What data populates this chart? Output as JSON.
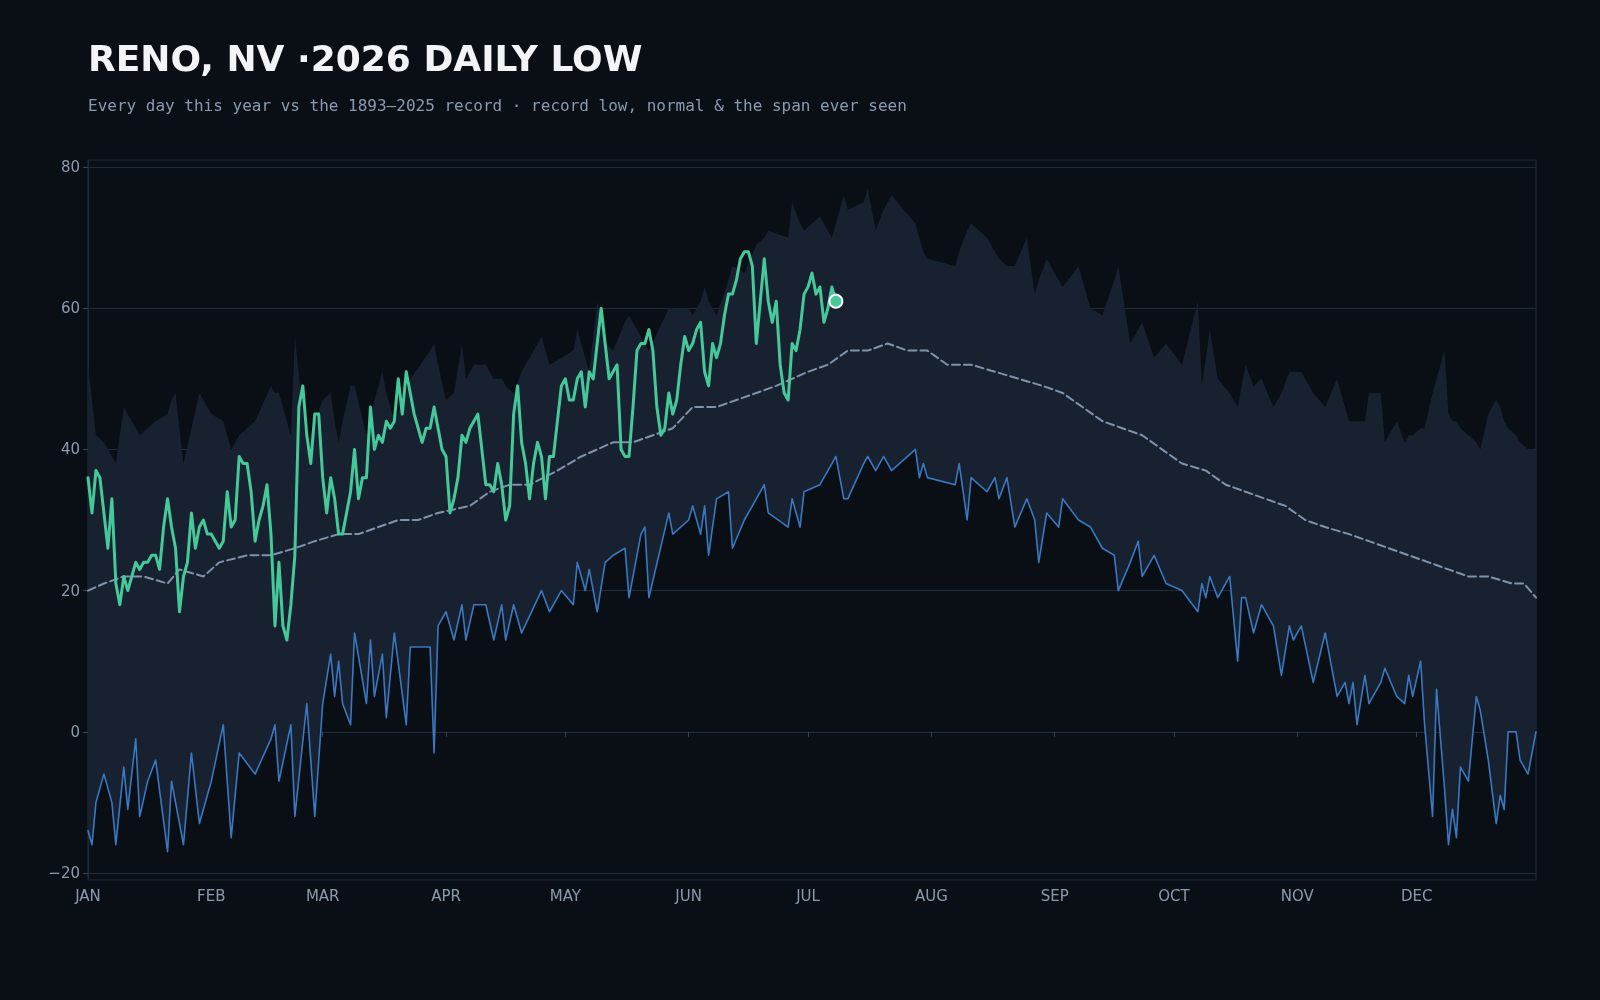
{
  "chart_data": {
    "type": "line",
    "title": "RENO, NV ·2026 DAILY LOW",
    "subtitle": "Every day this year vs the 1893–2025 record · record low, normal & the span ever seen",
    "xlim": [
      "2026-01-01",
      "2026-12-31"
    ],
    "xticks": [
      {
        "value": "2026-01-01",
        "label": "JAN"
      },
      {
        "value": "2026-02-01",
        "label": "FEB"
      },
      {
        "value": "2026-03-01",
        "label": "MAR"
      },
      {
        "value": "2026-04-01",
        "label": "APR"
      },
      {
        "value": "2026-05-01",
        "label": "MAY"
      },
      {
        "value": "2026-06-01",
        "label": "JUN"
      },
      {
        "value": "2026-07-01",
        "label": "JUL"
      },
      {
        "value": "2026-08-01",
        "label": "AUG"
      },
      {
        "value": "2026-09-01",
        "label": "SEP"
      },
      {
        "value": "2026-10-01",
        "label": "OCT"
      },
      {
        "value": "2026-11-01",
        "label": "NOV"
      },
      {
        "value": "2026-12-01",
        "label": "DEC"
      }
    ],
    "ylim": [
      -21,
      81
    ],
    "yticks": [
      {
        "value": -20,
        "label": "−20"
      },
      0,
      20,
      40,
      60,
      80
    ],
    "grid": "y",
    "series": [
      {
        "color": "#3a78c0",
        "x": [
          "2026-01-01",
          "2026-01-02",
          "2026-01-03",
          "2026-01-05",
          "2026-01-07",
          "2026-01-08",
          "2026-01-10",
          "2026-01-11",
          "2026-01-13",
          "2026-01-14",
          "2026-01-16",
          "2026-01-18",
          "2026-01-21",
          "2026-01-22",
          "2026-01-23",
          "2026-01-25",
          "2026-01-27",
          "2026-01-29",
          "2026-02-01",
          "2026-02-04",
          "2026-02-06",
          "2026-02-08",
          "2026-02-12",
          "2026-02-16",
          "2026-02-17",
          "2026-02-18",
          "2026-02-21",
          "2026-02-22",
          "2026-02-25",
          "2026-02-27",
          "2026-03-01",
          "2026-03-03",
          "2026-03-04",
          "2026-03-05",
          "2026-03-06",
          "2026-03-08",
          "2026-03-09",
          "2026-03-12",
          "2026-03-13",
          "2026-03-14",
          "2026-03-16",
          "2026-03-17",
          "2026-03-19",
          "2026-03-22",
          "2026-03-23",
          "2026-03-28",
          "2026-03-29",
          "2026-03-30",
          "2026-04-01",
          "2026-04-03",
          "2026-04-05",
          "2026-04-06",
          "2026-04-08",
          "2026-04-11",
          "2026-04-13",
          "2026-04-15",
          "2026-04-16",
          "2026-04-18",
          "2026-04-20",
          "2026-04-25",
          "2026-04-27",
          "2026-04-30",
          "2026-05-03",
          "2026-05-04",
          "2026-05-06",
          "2026-05-07",
          "2026-05-09",
          "2026-05-11",
          "2026-05-13",
          "2026-05-16",
          "2026-05-17",
          "2026-05-20",
          "2026-05-21",
          "2026-05-22",
          "2026-05-27",
          "2026-05-28",
          "2026-06-01",
          "2026-06-02",
          "2026-06-04",
          "2026-06-05",
          "2026-06-06",
          "2026-06-08",
          "2026-06-11",
          "2026-06-12",
          "2026-06-15",
          "2026-06-18",
          "2026-06-20",
          "2026-06-21",
          "2026-06-26",
          "2026-06-27",
          "2026-06-29",
          "2026-06-30",
          "2026-07-04",
          "2026-07-07",
          "2026-07-08",
          "2026-07-10",
          "2026-07-11",
          "2026-07-15",
          "2026-07-16",
          "2026-07-18",
          "2026-07-20",
          "2026-07-22",
          "2026-07-28",
          "2026-07-29",
          "2026-07-30",
          "2026-07-31",
          "2026-08-07",
          "2026-08-08",
          "2026-08-10",
          "2026-08-11",
          "2026-08-15",
          "2026-08-17",
          "2026-08-18",
          "2026-08-20",
          "2026-08-22",
          "2026-08-25",
          "2026-08-27",
          "2026-08-28",
          "2026-08-30",
          "2026-09-02",
          "2026-09-03",
          "2026-09-07",
          "2026-09-10",
          "2026-09-13",
          "2026-09-16",
          "2026-09-17",
          "2026-09-20",
          "2026-09-22",
          "2026-09-23",
          "2026-09-26",
          "2026-09-29",
          "2026-10-03",
          "2026-10-07",
          "2026-10-08",
          "2026-10-09",
          "2026-10-10",
          "2026-10-12",
          "2026-10-15",
          "2026-10-17",
          "2026-10-18",
          "2026-10-19",
          "2026-10-21",
          "2026-10-23",
          "2026-10-26",
          "2026-10-28",
          "2026-10-30",
          "2026-10-31",
          "2026-11-02",
          "2026-11-05",
          "2026-11-08",
          "2026-11-11",
          "2026-11-13",
          "2026-11-14",
          "2026-11-15",
          "2026-11-16",
          "2026-11-18",
          "2026-11-19",
          "2026-11-22",
          "2026-11-23",
          "2026-11-26",
          "2026-11-28",
          "2026-11-29",
          "2026-11-30",
          "2026-12-02",
          "2026-12-03",
          "2026-12-05",
          "2026-12-06",
          "2026-12-08",
          "2026-12-09",
          "2026-12-10",
          "2026-12-11",
          "2026-12-12",
          "2026-12-14",
          "2026-12-16",
          "2026-12-17",
          "2026-12-19",
          "2026-12-21",
          "2026-12-22",
          "2026-12-23",
          "2026-12-24",
          "2026-12-26",
          "2026-12-27",
          "2026-12-29",
          "2026-12-31"
        ],
        "values": [
          -14,
          -16,
          -10,
          -6,
          -10,
          -16,
          -5,
          -11,
          -1,
          -12,
          -7,
          -4,
          -17,
          -7,
          -10,
          -16,
          -3,
          -13,
          -7,
          1,
          -15,
          -3,
          -6,
          -1,
          1,
          -7,
          1,
          -12,
          4,
          -12,
          4,
          11,
          5,
          10,
          4,
          1,
          14,
          4,
          13,
          5,
          11,
          2,
          14,
          1,
          12,
          12,
          -3,
          15,
          17,
          13,
          18,
          13,
          18,
          18,
          13,
          18,
          13,
          18,
          14,
          20,
          17,
          20,
          18,
          24,
          20,
          23,
          17,
          24,
          25,
          26,
          19,
          28,
          29,
          19,
          31,
          28,
          30,
          32,
          28,
          32,
          25,
          33,
          34,
          26,
          30,
          33,
          35,
          31,
          29,
          33,
          29,
          34,
          35,
          38,
          39,
          33,
          33,
          38,
          39,
          37,
          39,
          37,
          40,
          36,
          38,
          36,
          35,
          38,
          30,
          36,
          34,
          36,
          33,
          36,
          29,
          33,
          30,
          24,
          31,
          29,
          33,
          30,
          29,
          26,
          25,
          20,
          24,
          27,
          22,
          25,
          21,
          20,
          17,
          21,
          19,
          22,
          19,
          22,
          10,
          19,
          19,
          14,
          18,
          15,
          8,
          15,
          13,
          15,
          7,
          14,
          5,
          7,
          4,
          7,
          1,
          8,
          4,
          7,
          9,
          5,
          4,
          8,
          5,
          10,
          1,
          -12,
          6,
          -8,
          -16,
          -11,
          -15,
          -5,
          -7,
          5,
          3,
          -4,
          -13,
          -9,
          -11,
          0,
          0,
          -4,
          -6,
          0
        ],
        "lower": [
          -14,
          -16,
          -10,
          -6,
          -10,
          -16,
          -5,
          -11,
          -1,
          -12,
          -7,
          -4,
          -17,
          -7,
          -10,
          -16,
          -3,
          -13,
          -7,
          1,
          -15,
          -3,
          -6,
          -1,
          1,
          -7,
          1,
          -12,
          4,
          -12,
          4,
          11,
          5,
          10,
          4,
          1,
          14,
          4,
          13,
          5,
          11,
          2,
          14,
          1,
          12,
          12,
          -3,
          15,
          17,
          13,
          18,
          13,
          18,
          18,
          13,
          18,
          13,
          18,
          14,
          20,
          17,
          20,
          18,
          24,
          20,
          23,
          17,
          24,
          25,
          26,
          19,
          28,
          29,
          19,
          31,
          28,
          30,
          32,
          28,
          32,
          25,
          33,
          34,
          26,
          30,
          33,
          35,
          31,
          29,
          33,
          29,
          34,
          35,
          38,
          39,
          33,
          33,
          38,
          39,
          37,
          39,
          37,
          40,
          36,
          38,
          36,
          35,
          38,
          30,
          36,
          34,
          36,
          33,
          36,
          29,
          33,
          30,
          24,
          31,
          29,
          33,
          30,
          29,
          26,
          25,
          20,
          24,
          27,
          22,
          25,
          21,
          20,
          17,
          21,
          19,
          22,
          19,
          22,
          10,
          19,
          19,
          14,
          18,
          15,
          8,
          15,
          13,
          15,
          7,
          14,
          5,
          7,
          4,
          7,
          1,
          8,
          4,
          7,
          9,
          5,
          4,
          8,
          5,
          10,
          1,
          -12,
          6,
          -8,
          -16,
          -11,
          -15,
          -5,
          -7,
          5,
          3,
          -4,
          -13,
          -9,
          -11,
          0,
          0,
          -4,
          -6,
          0
        ],
        "upper": [
          52,
          47,
          42,
          41,
          39,
          38,
          46,
          45,
          43,
          42,
          43,
          44,
          45,
          47,
          48,
          38,
          43,
          48,
          45,
          44,
          40,
          42,
          44,
          49,
          48,
          48,
          42,
          56,
          40,
          44,
          47,
          48,
          44,
          41,
          44,
          49,
          49,
          42,
          45,
          47,
          51,
          48,
          44,
          48,
          50,
          54,
          55,
          52,
          47,
          48,
          55,
          50,
          52,
          52,
          50,
          50,
          49,
          48,
          51,
          56,
          52,
          53,
          54,
          57,
          53,
          51,
          61,
          55,
          54,
          58,
          59,
          56,
          55,
          54,
          60,
          60,
          60,
          59,
          61,
          63,
          61,
          59,
          64,
          66,
          65,
          69,
          70,
          71,
          70,
          75,
          72,
          71,
          73,
          70,
          72,
          76,
          74,
          75,
          77,
          71,
          74,
          76,
          72,
          70,
          68,
          67,
          66,
          68,
          71,
          72,
          70,
          68,
          67,
          66,
          66,
          70,
          62,
          64,
          67,
          64,
          63,
          66,
          60,
          59,
          64,
          66,
          55,
          57,
          58,
          53,
          55,
          52,
          61,
          49,
          53,
          57,
          50,
          48,
          46,
          49,
          52,
          49,
          50,
          46,
          48,
          51,
          51,
          51,
          48,
          46,
          50,
          46,
          44,
          44,
          44,
          44,
          48,
          48,
          41,
          44,
          41,
          42,
          42,
          43,
          43,
          48,
          50,
          54,
          45,
          44,
          44,
          43,
          42,
          41,
          40,
          45,
          47,
          46,
          44,
          43,
          42,
          41,
          40,
          40
        ]
      },
      {
        "color": "#7f93ad",
        "line_style": "dashed",
        "x": [
          "2026-01-01",
          "2026-01-05",
          "2026-01-10",
          "2026-01-15",
          "2026-01-21",
          "2026-01-24",
          "2026-01-30",
          "2026-02-03",
          "2026-02-10",
          "2026-02-16",
          "2026-02-22",
          "2026-02-27",
          "2026-03-05",
          "2026-03-10",
          "2026-03-15",
          "2026-03-20",
          "2026-03-25",
          "2026-03-30",
          "2026-04-07",
          "2026-04-12",
          "2026-04-17",
          "2026-04-22",
          "2026-04-29",
          "2026-05-05",
          "2026-05-13",
          "2026-05-18",
          "2026-05-23",
          "2026-05-28",
          "2026-06-02",
          "2026-06-08",
          "2026-06-13",
          "2026-06-18",
          "2026-06-23",
          "2026-07-01",
          "2026-07-06",
          "2026-07-11",
          "2026-07-16",
          "2026-07-21",
          "2026-07-26",
          "2026-07-31",
          "2026-08-05",
          "2026-08-11",
          "2026-08-17",
          "2026-08-23",
          "2026-08-29",
          "2026-09-03",
          "2026-09-08",
          "2026-09-13",
          "2026-09-18",
          "2026-09-23",
          "2026-09-28",
          "2026-10-03",
          "2026-10-09",
          "2026-10-14",
          "2026-10-19",
          "2026-10-24",
          "2026-10-29",
          "2026-11-03",
          "2026-11-08",
          "2026-11-14",
          "2026-11-19",
          "2026-11-24",
          "2026-11-29",
          "2026-12-04",
          "2026-12-09",
          "2026-12-14",
          "2026-12-19",
          "2026-12-25",
          "2026-12-28",
          "2026-12-31"
        ],
        "values": [
          20,
          21,
          22,
          22,
          21,
          23,
          22,
          24,
          25,
          25,
          26,
          27,
          28,
          28,
          29,
          30,
          30,
          31,
          32,
          34,
          35,
          35,
          37,
          39,
          41,
          41,
          42,
          43,
          46,
          46,
          47,
          48,
          49,
          51,
          52,
          54,
          54,
          55,
          54,
          54,
          52,
          52,
          51,
          50,
          49,
          48,
          46,
          44,
          43,
          42,
          40,
          38,
          37,
          35,
          34,
          33,
          32,
          30,
          29,
          28,
          27,
          26,
          25,
          24,
          23,
          22,
          22,
          21,
          21,
          19
        ]
      },
      {
        "color": "#45c89a",
        "x": [
          "2026-01-01",
          "2026-01-02",
          "2026-01-03",
          "2026-01-04",
          "2026-01-05",
          "2026-01-06",
          "2026-01-07",
          "2026-01-08",
          "2026-01-09",
          "2026-01-10",
          "2026-01-11",
          "2026-01-12",
          "2026-01-13",
          "2026-01-14",
          "2026-01-15",
          "2026-01-16",
          "2026-01-17",
          "2026-01-18",
          "2026-01-19",
          "2026-01-20",
          "2026-01-21",
          "2026-01-22",
          "2026-01-23",
          "2026-01-24",
          "2026-01-25",
          "2026-01-26",
          "2026-01-27",
          "2026-01-28",
          "2026-01-29",
          "2026-01-30",
          "2026-01-31",
          "2026-02-01",
          "2026-02-02",
          "2026-02-03",
          "2026-02-04",
          "2026-02-05",
          "2026-02-06",
          "2026-02-07",
          "2026-02-08",
          "2026-02-09",
          "2026-02-10",
          "2026-02-11",
          "2026-02-12",
          "2026-02-13",
          "2026-02-14",
          "2026-02-15",
          "2026-02-16",
          "2026-02-17",
          "2026-02-18",
          "2026-02-19",
          "2026-02-20",
          "2026-02-21",
          "2026-02-22",
          "2026-02-23",
          "2026-02-24",
          "2026-02-25",
          "2026-02-26",
          "2026-02-27",
          "2026-02-28",
          "2026-03-01",
          "2026-03-02",
          "2026-03-03",
          "2026-03-04",
          "2026-03-05",
          "2026-03-06",
          "2026-03-07",
          "2026-03-08",
          "2026-03-09",
          "2026-03-10",
          "2026-03-11",
          "2026-03-12",
          "2026-03-13",
          "2026-03-14",
          "2026-03-15",
          "2026-03-16",
          "2026-03-17",
          "2026-03-18",
          "2026-03-19",
          "2026-03-20",
          "2026-03-21",
          "2026-03-22",
          "2026-03-23",
          "2026-03-24",
          "2026-03-25",
          "2026-03-26",
          "2026-03-27",
          "2026-03-28",
          "2026-03-29",
          "2026-03-30",
          "2026-03-31",
          "2026-04-01",
          "2026-04-02",
          "2026-04-03",
          "2026-04-04",
          "2026-04-05",
          "2026-04-06",
          "2026-04-07",
          "2026-04-08",
          "2026-04-09",
          "2026-04-10",
          "2026-04-11",
          "2026-04-12",
          "2026-04-13",
          "2026-04-14",
          "2026-04-15",
          "2026-04-16",
          "2026-04-17",
          "2026-04-18",
          "2026-04-19",
          "2026-04-20",
          "2026-04-21",
          "2026-04-22",
          "2026-04-23",
          "2026-04-24",
          "2026-04-25",
          "2026-04-26",
          "2026-04-27",
          "2026-04-28",
          "2026-04-29",
          "2026-04-30",
          "2026-05-01",
          "2026-05-02",
          "2026-05-03",
          "2026-05-04",
          "2026-05-05",
          "2026-05-06",
          "2026-05-07",
          "2026-05-08",
          "2026-05-09",
          "2026-05-10",
          "2026-05-11",
          "2026-05-12",
          "2026-05-13",
          "2026-05-14",
          "2026-05-15",
          "2026-05-16",
          "2026-05-17",
          "2026-05-18",
          "2026-05-19",
          "2026-05-20",
          "2026-05-21",
          "2026-05-22",
          "2026-05-23",
          "2026-05-24",
          "2026-05-25",
          "2026-05-26",
          "2026-05-27",
          "2026-05-28",
          "2026-05-29",
          "2026-05-30",
          "2026-05-31",
          "2026-06-01",
          "2026-06-02",
          "2026-06-03",
          "2026-06-04",
          "2026-06-05",
          "2026-06-06",
          "2026-06-07",
          "2026-06-08",
          "2026-06-09",
          "2026-06-10",
          "2026-06-11",
          "2026-06-12",
          "2026-06-13",
          "2026-06-14",
          "2026-06-15",
          "2026-06-16",
          "2026-06-17",
          "2026-06-18",
          "2026-06-19",
          "2026-06-20",
          "2026-06-21",
          "2026-06-22",
          "2026-06-23",
          "2026-06-24",
          "2026-06-25",
          "2026-06-26",
          "2026-06-27",
          "2026-06-28",
          "2026-06-29",
          "2026-06-30",
          "2026-07-01",
          "2026-07-02",
          "2026-07-03",
          "2026-07-04",
          "2026-07-05",
          "2026-07-06",
          "2026-07-07",
          "2026-07-08"
        ],
        "values": [
          36,
          31,
          37,
          36,
          31,
          26,
          33,
          21,
          18,
          22,
          20,
          22,
          24,
          23,
          24,
          24,
          25,
          25,
          23,
          29,
          33,
          29,
          26,
          17,
          22,
          24,
          31,
          26,
          29,
          30,
          28,
          28,
          27,
          26,
          27,
          34,
          29,
          30,
          39,
          38,
          38,
          34,
          27,
          30,
          32,
          35,
          28,
          15,
          24,
          15,
          13,
          18,
          25,
          46,
          49,
          42,
          38,
          45,
          45,
          36,
          31,
          36,
          33,
          28,
          28,
          31,
          34,
          40,
          33,
          36,
          36,
          46,
          40,
          42,
          41,
          44,
          43,
          44,
          50,
          45,
          51,
          48,
          45,
          43,
          41,
          43,
          43,
          46,
          43,
          40,
          39,
          31,
          33,
          36,
          42,
          41,
          43,
          44,
          45,
          40,
          35,
          35,
          34,
          38,
          35,
          30,
          32,
          45,
          49,
          41,
          38,
          33,
          38,
          41,
          39,
          33,
          39,
          39,
          44,
          49,
          50,
          47,
          47,
          50,
          51,
          46,
          51,
          50,
          55,
          60,
          55,
          50,
          51,
          52,
          40,
          39,
          39,
          46,
          54,
          55,
          55,
          57,
          54,
          46,
          42,
          43,
          48,
          45,
          47,
          52,
          56,
          54,
          55,
          57,
          58,
          51,
          49,
          55,
          53,
          55,
          59,
          62,
          62,
          64,
          67,
          68,
          68,
          66,
          55,
          61,
          67,
          61,
          58,
          61,
          52,
          48,
          47,
          55,
          54,
          57,
          62,
          63,
          65,
          62,
          63,
          58,
          60,
          63,
          61
        ]
      }
    ]
  }
}
